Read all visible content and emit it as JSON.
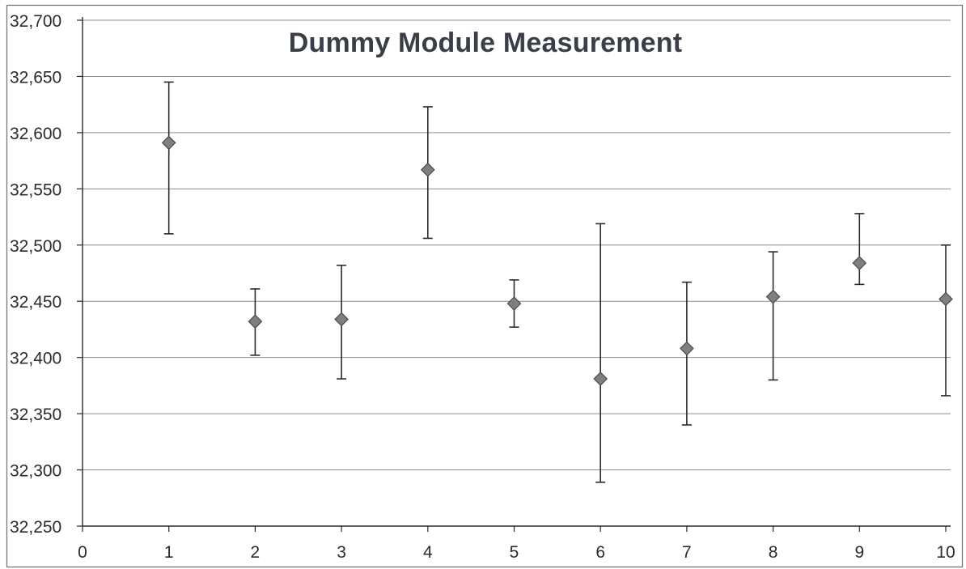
{
  "chart_data": {
    "type": "scatter",
    "title": "Dummy Module Measurement",
    "xlabel": "",
    "ylabel": "",
    "xlim": [
      0,
      10
    ],
    "ylim": [
      32250,
      32700
    ],
    "x_ticks": [
      0,
      1,
      2,
      3,
      4,
      5,
      6,
      7,
      8,
      9,
      10
    ],
    "x_tick_labels": [
      "0",
      "1",
      "2",
      "3",
      "4",
      "5",
      "6",
      "7",
      "8",
      "9",
      "10"
    ],
    "y_ticks": [
      32250,
      32300,
      32350,
      32400,
      32450,
      32500,
      32550,
      32600,
      32650,
      32700
    ],
    "y_tick_labels": [
      "32,250",
      "32,300",
      "32,350",
      "32,400",
      "32,450",
      "32,500",
      "32,550",
      "32,600",
      "32,650",
      "32,700"
    ],
    "grid": "horizontal",
    "legend": "none",
    "marker": "diamond",
    "colors": {
      "marker_fill": "#7f7f7f",
      "marker_stroke": "#4a4a4a",
      "error_bar": "#2b2b2b",
      "grid": "#8c8c8c",
      "axis": "#2b2b2b",
      "text": "#2b2b2b"
    },
    "points": [
      {
        "x": 1,
        "y": 32591,
        "y_low": 32510,
        "y_high": 32645
      },
      {
        "x": 2,
        "y": 32432,
        "y_low": 32402,
        "y_high": 32461
      },
      {
        "x": 3,
        "y": 32434,
        "y_low": 32381,
        "y_high": 32482
      },
      {
        "x": 4,
        "y": 32567,
        "y_low": 32506,
        "y_high": 32623
      },
      {
        "x": 5,
        "y": 32448,
        "y_low": 32427,
        "y_high": 32469
      },
      {
        "x": 6,
        "y": 32381,
        "y_low": 32289,
        "y_high": 32519
      },
      {
        "x": 7,
        "y": 32408,
        "y_low": 32340,
        "y_high": 32467
      },
      {
        "x": 8,
        "y": 32454,
        "y_low": 32380,
        "y_high": 32494
      },
      {
        "x": 9,
        "y": 32484,
        "y_low": 32465,
        "y_high": 32528
      },
      {
        "x": 10,
        "y": 32452,
        "y_low": 32366,
        "y_high": 32500
      }
    ]
  }
}
